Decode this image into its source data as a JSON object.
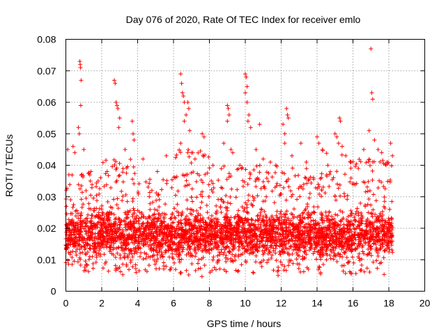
{
  "chart_data": {
    "type": "scatter",
    "title": "Day 076 of 2020, Rate Of TEC Index for receiver emlo",
    "xlabel": "GPS time / hours",
    "ylabel": "ROTI / TECUs",
    "xlim": [
      0,
      20
    ],
    "ylim": [
      0,
      0.08
    ],
    "x_ticks": [
      "0",
      "2",
      "4",
      "6",
      "8",
      "10",
      "12",
      "14",
      "16",
      "18",
      "20"
    ],
    "y_ticks": [
      "0",
      "0.01",
      "0.02",
      "0.03",
      "0.04",
      "0.05",
      "0.06",
      "0.07",
      "0.08"
    ],
    "grid": true,
    "marker": "plus",
    "color": "#ff0000",
    "series": [
      {
        "points": [
          [
            0.1,
            0.045
          ],
          [
            0.4,
            0.046
          ],
          [
            0.5,
            0.044
          ],
          [
            0.7,
            0.052
          ],
          [
            0.75,
            0.05
          ],
          [
            0.78,
            0.073
          ],
          [
            0.8,
            0.072
          ],
          [
            0.82,
            0.071
          ],
          [
            0.85,
            0.067
          ],
          [
            0.83,
            0.059
          ],
          [
            1.0,
            0.045
          ],
          [
            1.4,
            0.038
          ],
          [
            1.8,
            0.035
          ],
          [
            2.3,
            0.038
          ],
          [
            2.7,
            0.067
          ],
          [
            2.75,
            0.066
          ],
          [
            2.8,
            0.06
          ],
          [
            2.85,
            0.059
          ],
          [
            2.9,
            0.058
          ],
          [
            3.0,
            0.055
          ],
          [
            2.95,
            0.052
          ],
          [
            3.3,
            0.045
          ],
          [
            3.7,
            0.054
          ],
          [
            3.75,
            0.05
          ],
          [
            3.8,
            0.048
          ],
          [
            4.3,
            0.042
          ],
          [
            5.1,
            0.038
          ],
          [
            5.6,
            0.043
          ],
          [
            6.4,
            0.069
          ],
          [
            6.45,
            0.066
          ],
          [
            6.5,
            0.063
          ],
          [
            6.55,
            0.062
          ],
          [
            6.6,
            0.06
          ],
          [
            6.8,
            0.06
          ],
          [
            6.85,
            0.058
          ],
          [
            6.7,
            0.056
          ],
          [
            6.6,
            0.054
          ],
          [
            6.9,
            0.051
          ],
          [
            6.4,
            0.047
          ],
          [
            7.2,
            0.042
          ],
          [
            7.6,
            0.05
          ],
          [
            7.7,
            0.049
          ],
          [
            8.2,
            0.04
          ],
          [
            8.8,
            0.047
          ],
          [
            9.0,
            0.059
          ],
          [
            9.05,
            0.058
          ],
          [
            9.1,
            0.056
          ],
          [
            9.0,
            0.054
          ],
          [
            9.2,
            0.045
          ],
          [
            9.3,
            0.044
          ],
          [
            9.7,
            0.04
          ],
          [
            10.0,
            0.069
          ],
          [
            10.05,
            0.068
          ],
          [
            10.1,
            0.065
          ],
          [
            10.0,
            0.063
          ],
          [
            10.1,
            0.06
          ],
          [
            10.2,
            0.056
          ],
          [
            10.15,
            0.054
          ],
          [
            10.3,
            0.052
          ],
          [
            10.6,
            0.045
          ],
          [
            10.8,
            0.053
          ],
          [
            11.0,
            0.042
          ],
          [
            11.4,
            0.041
          ],
          [
            11.7,
            0.04
          ],
          [
            12.1,
            0.053
          ],
          [
            12.2,
            0.05
          ],
          [
            12.3,
            0.058
          ],
          [
            12.35,
            0.056
          ],
          [
            12.4,
            0.055
          ],
          [
            12.2,
            0.047
          ],
          [
            12.6,
            0.043
          ],
          [
            13.1,
            0.047
          ],
          [
            13.4,
            0.041
          ],
          [
            14.0,
            0.049
          ],
          [
            14.1,
            0.047
          ],
          [
            14.3,
            0.045
          ],
          [
            14.6,
            0.04
          ],
          [
            15.0,
            0.05
          ],
          [
            15.1,
            0.049
          ],
          [
            15.25,
            0.055
          ],
          [
            15.3,
            0.054
          ],
          [
            15.2,
            0.047
          ],
          [
            15.4,
            0.046
          ],
          [
            15.6,
            0.043
          ],
          [
            15.9,
            0.041
          ],
          [
            16.3,
            0.039
          ],
          [
            16.6,
            0.045
          ],
          [
            17.0,
            0.077
          ],
          [
            17.05,
            0.063
          ],
          [
            17.1,
            0.061
          ],
          [
            16.9,
            0.051
          ],
          [
            17.2,
            0.048
          ],
          [
            17.4,
            0.045
          ],
          [
            17.6,
            0.044
          ],
          [
            17.9,
            0.041
          ],
          [
            18.1,
            0.047
          ],
          [
            18.2,
            0.043
          ]
        ],
        "density_bands": [
          {
            "x_range": [
              0.0,
              2.0
            ],
            "y_range": [
              0.006,
              0.038
            ],
            "points": 400
          },
          {
            "x_range": [
              2.0,
              4.0
            ],
            "y_range": [
              0.005,
              0.042
            ],
            "points": 420
          },
          {
            "x_range": [
              4.0,
              6.0
            ],
            "y_range": [
              0.006,
              0.036
            ],
            "points": 400
          },
          {
            "x_range": [
              6.0,
              8.0
            ],
            "y_range": [
              0.004,
              0.045
            ],
            "points": 430
          },
          {
            "x_range": [
              8.0,
              10.0
            ],
            "y_range": [
              0.006,
              0.04
            ],
            "points": 420
          },
          {
            "x_range": [
              10.0,
              12.0
            ],
            "y_range": [
              0.005,
              0.04
            ],
            "points": 420
          },
          {
            "x_range": [
              12.0,
              14.0
            ],
            "y_range": [
              0.006,
              0.04
            ],
            "points": 410
          },
          {
            "x_range": [
              14.0,
              16.0
            ],
            "y_range": [
              0.005,
              0.045
            ],
            "points": 430
          },
          {
            "x_range": [
              16.0,
              18.2
            ],
            "y_range": [
              0.005,
              0.042
            ],
            "points": 420
          }
        ]
      }
    ]
  }
}
